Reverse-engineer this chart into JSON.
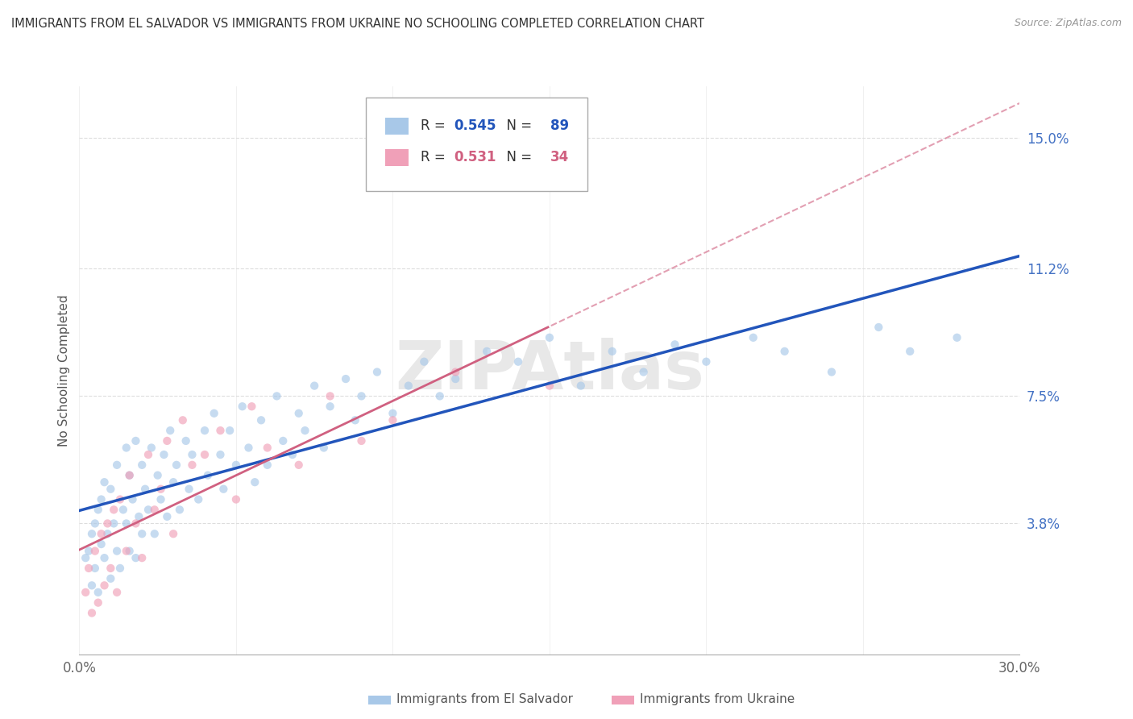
{
  "title": "IMMIGRANTS FROM EL SALVADOR VS IMMIGRANTS FROM UKRAINE NO SCHOOLING COMPLETED CORRELATION CHART",
  "source": "Source: ZipAtlas.com",
  "ylabel": "No Schooling Completed",
  "xlim": [
    0.0,
    0.3
  ],
  "ylim": [
    0.0,
    0.165
  ],
  "xticks": [
    0.0,
    0.05,
    0.1,
    0.15,
    0.2,
    0.25,
    0.3
  ],
  "ytick_positions": [
    0.038,
    0.075,
    0.112,
    0.15
  ],
  "ytick_labels": [
    "3.8%",
    "7.5%",
    "11.2%",
    "15.0%"
  ],
  "color_salvador": "#a8c8e8",
  "color_ukraine": "#f0a0b8",
  "line_color_salvador": "#2255bb",
  "line_color_ukraine": "#d06080",
  "R_salvador": 0.545,
  "N_salvador": 89,
  "R_ukraine": 0.531,
  "N_ukraine": 34,
  "legend_label_salvador": "Immigrants from El Salvador",
  "legend_label_ukraine": "Immigrants from Ukraine",
  "watermark": "ZIPAtlas",
  "background_color": "#ffffff",
  "grid_color": "#dddddd",
  "scatter_size": 55,
  "scatter_alpha": 0.65,
  "el_salvador_x": [
    0.002,
    0.003,
    0.004,
    0.004,
    0.005,
    0.005,
    0.006,
    0.006,
    0.007,
    0.007,
    0.008,
    0.008,
    0.009,
    0.01,
    0.01,
    0.011,
    0.012,
    0.012,
    0.013,
    0.014,
    0.015,
    0.015,
    0.016,
    0.016,
    0.017,
    0.018,
    0.018,
    0.019,
    0.02,
    0.02,
    0.021,
    0.022,
    0.023,
    0.024,
    0.025,
    0.026,
    0.027,
    0.028,
    0.029,
    0.03,
    0.031,
    0.032,
    0.034,
    0.035,
    0.036,
    0.038,
    0.04,
    0.041,
    0.043,
    0.045,
    0.046,
    0.048,
    0.05,
    0.052,
    0.054,
    0.056,
    0.058,
    0.06,
    0.063,
    0.065,
    0.068,
    0.07,
    0.072,
    0.075,
    0.078,
    0.08,
    0.085,
    0.088,
    0.09,
    0.095,
    0.1,
    0.105,
    0.11,
    0.115,
    0.12,
    0.13,
    0.14,
    0.15,
    0.16,
    0.17,
    0.18,
    0.19,
    0.2,
    0.215,
    0.225,
    0.24,
    0.255,
    0.265,
    0.28
  ],
  "el_salvador_y": [
    0.028,
    0.03,
    0.02,
    0.035,
    0.025,
    0.038,
    0.018,
    0.042,
    0.032,
    0.045,
    0.028,
    0.05,
    0.035,
    0.022,
    0.048,
    0.038,
    0.03,
    0.055,
    0.025,
    0.042,
    0.038,
    0.06,
    0.03,
    0.052,
    0.045,
    0.028,
    0.062,
    0.04,
    0.055,
    0.035,
    0.048,
    0.042,
    0.06,
    0.035,
    0.052,
    0.045,
    0.058,
    0.04,
    0.065,
    0.05,
    0.055,
    0.042,
    0.062,
    0.048,
    0.058,
    0.045,
    0.065,
    0.052,
    0.07,
    0.058,
    0.048,
    0.065,
    0.055,
    0.072,
    0.06,
    0.05,
    0.068,
    0.055,
    0.075,
    0.062,
    0.058,
    0.07,
    0.065,
    0.078,
    0.06,
    0.072,
    0.08,
    0.068,
    0.075,
    0.082,
    0.07,
    0.078,
    0.085,
    0.075,
    0.08,
    0.088,
    0.085,
    0.092,
    0.078,
    0.088,
    0.082,
    0.09,
    0.085,
    0.092,
    0.088,
    0.082,
    0.095,
    0.088,
    0.092
  ],
  "ukraine_x": [
    0.002,
    0.003,
    0.004,
    0.005,
    0.006,
    0.007,
    0.008,
    0.009,
    0.01,
    0.011,
    0.012,
    0.013,
    0.015,
    0.016,
    0.018,
    0.02,
    0.022,
    0.024,
    0.026,
    0.028,
    0.03,
    0.033,
    0.036,
    0.04,
    0.045,
    0.05,
    0.055,
    0.06,
    0.07,
    0.08,
    0.09,
    0.1,
    0.12,
    0.15
  ],
  "ukraine_y": [
    0.018,
    0.025,
    0.012,
    0.03,
    0.015,
    0.035,
    0.02,
    0.038,
    0.025,
    0.042,
    0.018,
    0.045,
    0.03,
    0.052,
    0.038,
    0.028,
    0.058,
    0.042,
    0.048,
    0.062,
    0.035,
    0.068,
    0.055,
    0.058,
    0.065,
    0.045,
    0.072,
    0.06,
    0.055,
    0.075,
    0.062,
    0.068,
    0.082,
    0.078
  ]
}
